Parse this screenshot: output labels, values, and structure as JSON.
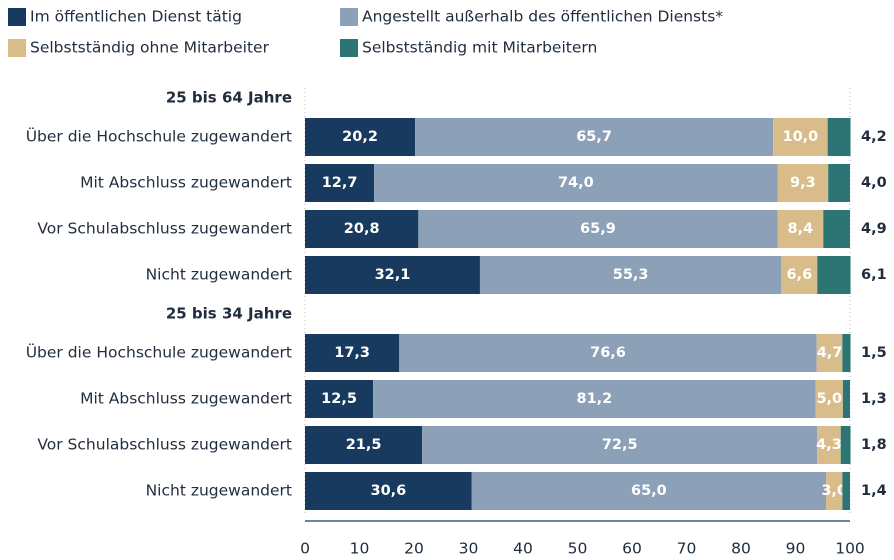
{
  "chart_data": {
    "type": "bar",
    "orientation": "horizontal",
    "stacked": true,
    "categories": [
      "Über die Hochschule zugewandert",
      "Mit Abschluss zugewandert",
      "Vor Schulabschluss zugewandert",
      "Nicht zugewandert",
      "Über die Hochschule zugewandert",
      "Mit Abschluss zugewandert",
      "Vor Schulabschluss zugewandert",
      "Nicht zugewandert"
    ],
    "groups": [
      {
        "name": "25 bis 64 Jahre",
        "size": 4
      },
      {
        "name": "25 bis 34 Jahre",
        "size": 4
      }
    ],
    "series": [
      {
        "name": "Im öffentlichen Dienst tätig",
        "color": "#173a5e",
        "values": [
          20.2,
          12.7,
          20.8,
          32.1,
          17.3,
          12.5,
          21.5,
          30.6
        ],
        "value_labels": [
          "20,2",
          "12,7",
          "20,8",
          "32,1",
          "17,3",
          "12,5",
          "21,5",
          "30,6"
        ]
      },
      {
        "name": "Angestellt außerhalb des öffentlichen Diensts*",
        "color": "#8ca0b7",
        "values": [
          65.7,
          74.0,
          65.9,
          55.3,
          76.6,
          81.2,
          72.5,
          65.0
        ],
        "value_labels": [
          "65,7",
          "74,0",
          "65,9",
          "55,3",
          "76,6",
          "81,2",
          "72,5",
          "65,0"
        ]
      },
      {
        "name": "Selbstständig ohne Mitarbeiter",
        "color": "#d8bd8a",
        "values": [
          10.0,
          9.3,
          8.4,
          6.6,
          4.7,
          5.0,
          4.3,
          3.0
        ],
        "value_labels": [
          "10,0",
          "9,3",
          "8,4",
          "6,6",
          "4,7",
          "5,0",
          "4,3",
          "3,0"
        ]
      },
      {
        "name": "Selbstständig mit Mitarbeitern",
        "color": "#2d7575",
        "values": [
          4.2,
          4.0,
          4.9,
          6.1,
          1.5,
          1.3,
          1.8,
          1.4
        ],
        "value_labels": [
          "4,2",
          "4,0",
          "4,9",
          "6,1",
          "1,5",
          "1,3",
          "1,8",
          "1,4"
        ]
      }
    ],
    "xlim": [
      0,
      100
    ],
    "xticks": [
      0,
      10,
      20,
      30,
      40,
      50,
      60,
      70,
      80,
      90,
      100
    ],
    "grid": false
  }
}
